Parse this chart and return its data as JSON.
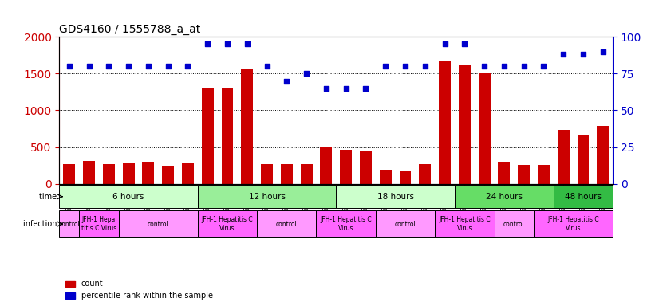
{
  "title": "GDS4160 / 1555788_a_at",
  "samples": [
    "GSM523814",
    "GSM523815",
    "GSM523800",
    "GSM523801",
    "GSM523816",
    "GSM523817",
    "GSM523818",
    "GSM523802",
    "GSM523803",
    "GSM523804",
    "GSM523819",
    "GSM523820",
    "GSM523821",
    "GSM523805",
    "GSM523806",
    "GSM523807",
    "GSM523822",
    "GSM523823",
    "GSM523824",
    "GSM523808",
    "GSM523809",
    "GSM523810",
    "GSM523825",
    "GSM523826",
    "GSM523827",
    "GSM523811",
    "GSM523812",
    "GSM523813"
  ],
  "counts": [
    270,
    310,
    270,
    275,
    300,
    250,
    295,
    1300,
    1305,
    1565,
    265,
    270,
    270,
    500,
    460,
    455,
    190,
    175,
    265,
    1660,
    1620,
    1510,
    300,
    260,
    255,
    735,
    655,
    790
  ],
  "percentiles": [
    80,
    80,
    80,
    80,
    80,
    80,
    80,
    95,
    95,
    95,
    80,
    70,
    75,
    65,
    65,
    65,
    80,
    80,
    80,
    95,
    95,
    80,
    80,
    80,
    80,
    88,
    88,
    90
  ],
  "bar_color": "#cc0000",
  "dot_color": "#0000cc",
  "ylim_left": [
    0,
    2000
  ],
  "ylim_right": [
    0,
    100
  ],
  "yticks_left": [
    0,
    500,
    1000,
    1500,
    2000
  ],
  "yticks_right": [
    0,
    25,
    50,
    75,
    100
  ],
  "time_groups": [
    {
      "label": "6 hours",
      "start": 0,
      "end": 7,
      "color": "#ccffcc"
    },
    {
      "label": "12 hours",
      "start": 7,
      "end": 14,
      "color": "#99ff99"
    },
    {
      "label": "18 hours",
      "start": 14,
      "end": 20,
      "color": "#ccffcc"
    },
    {
      "label": "24 hours",
      "start": 20,
      "end": 25,
      "color": "#66ff66"
    },
    {
      "label": "48 hours",
      "start": 25,
      "end": 28,
      "color": "#00cc44"
    }
  ],
  "infection_groups": [
    {
      "label": "control",
      "start": 0,
      "end": 1,
      "color": "#ff99ff"
    },
    {
      "label": "JFH-1 Hepa\ntitis C Virus",
      "start": 1,
      "end": 3,
      "color": "#ff66ff"
    },
    {
      "label": "control",
      "start": 3,
      "end": 7,
      "color": "#ff99ff"
    },
    {
      "label": "JFH-1 Hepatitis C\nVirus",
      "start": 7,
      "end": 10,
      "color": "#ff66ff"
    },
    {
      "label": "control",
      "start": 10,
      "end": 13,
      "color": "#ff99ff"
    },
    {
      "label": "JFH-1 Hepatitis C\nVirus",
      "start": 13,
      "end": 16,
      "color": "#ff66ff"
    },
    {
      "label": "control",
      "start": 16,
      "end": 19,
      "color": "#ff99ff"
    },
    {
      "label": "JFH-1 Hepatitis C\nVirus",
      "start": 19,
      "end": 22,
      "color": "#ff66ff"
    },
    {
      "label": "control",
      "start": 22,
      "end": 24,
      "color": "#ff99ff"
    },
    {
      "label": "JFH-1 Hepatitis C\nVirus",
      "start": 24,
      "end": 28,
      "color": "#ff66ff"
    }
  ],
  "bg_color": "#ffffff",
  "grid_color": "#000000",
  "left_axis_color": "#cc0000",
  "right_axis_color": "#0000cc"
}
